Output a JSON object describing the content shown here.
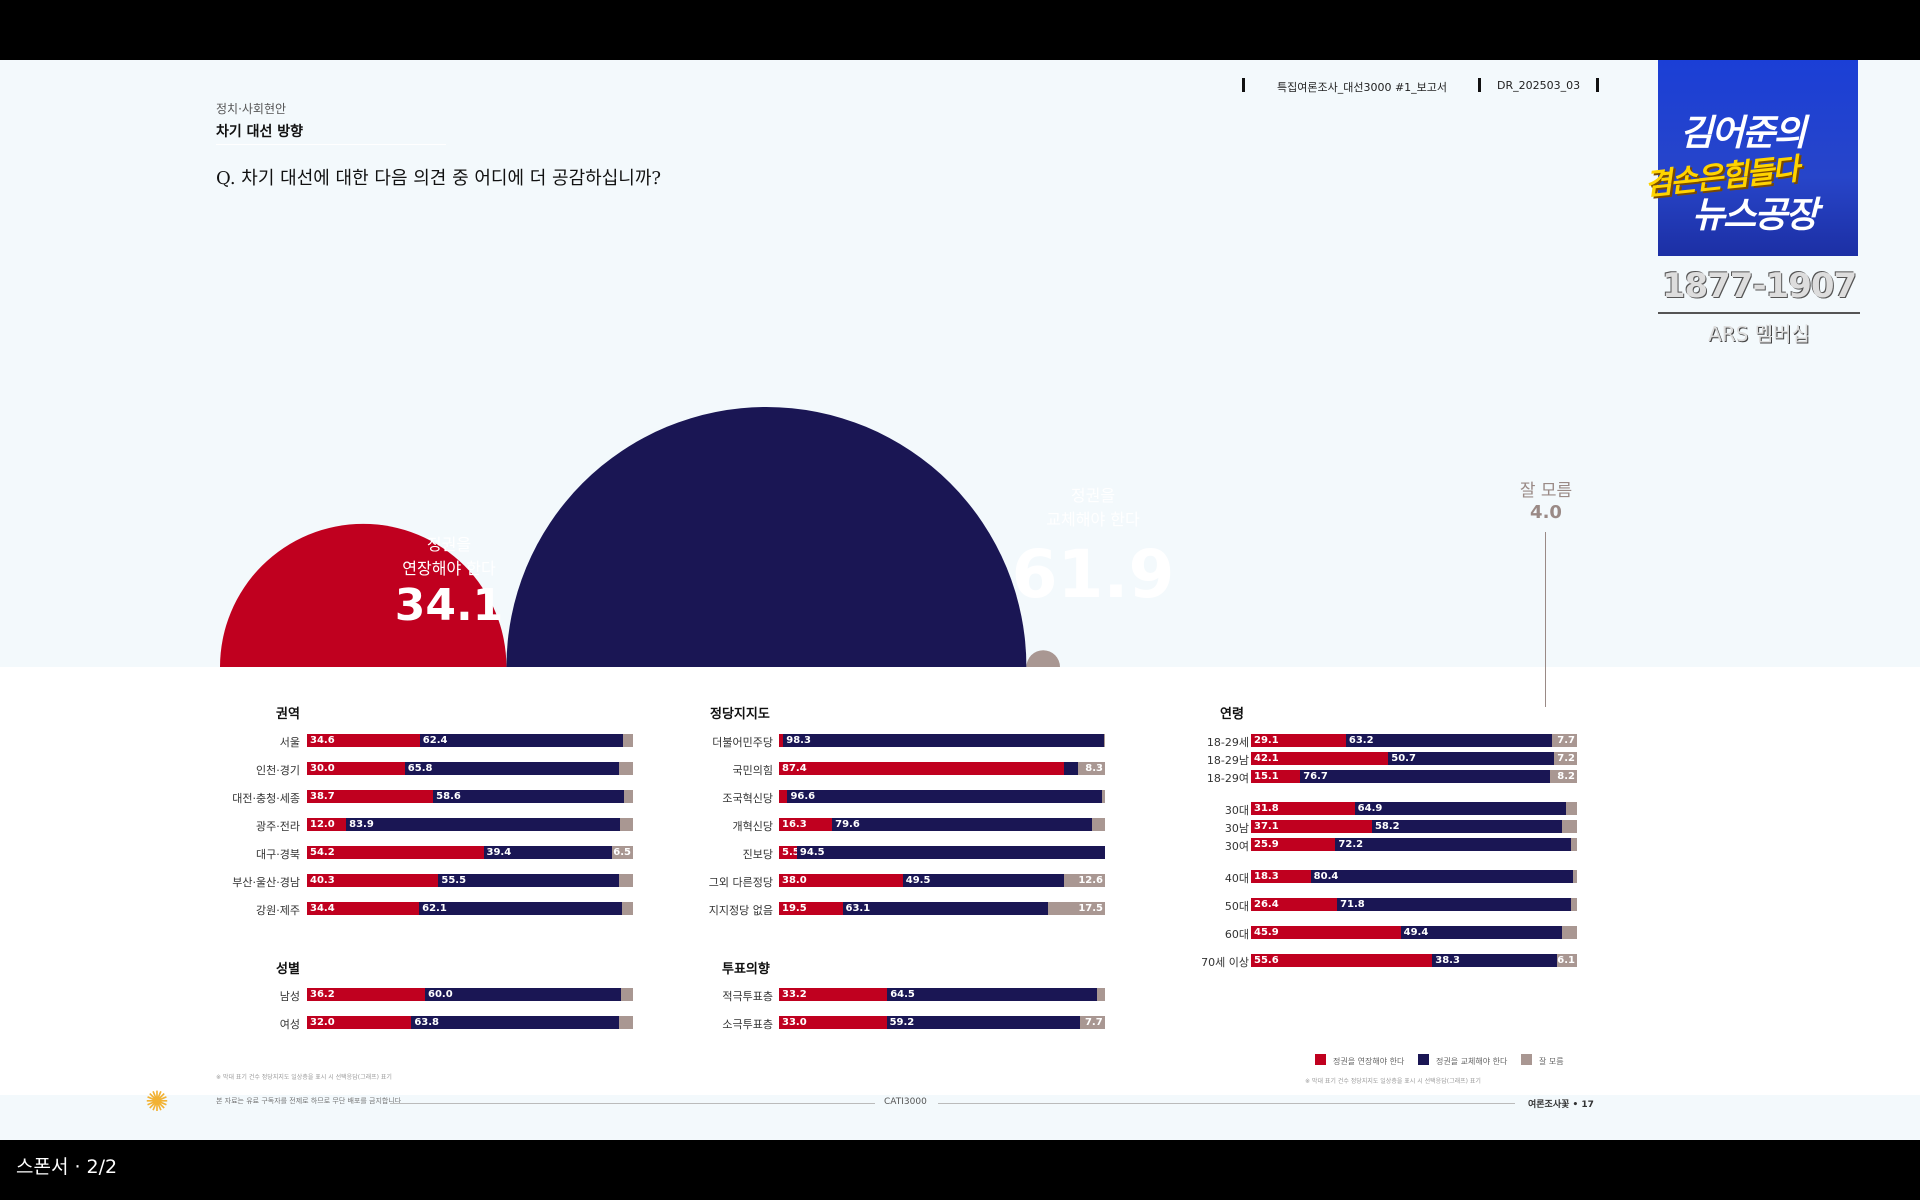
{
  "header": {
    "category": "정치·사회현안",
    "subject": "차기 대선 방향",
    "question": "Q. 차기 대선에 대한 다음 의견 중 어디에 더 공감하십니까?",
    "report": "특집여론조사_대선3000 #1_보고서",
    "code": "DR_202503_03"
  },
  "logo": {
    "line1": "김어준의",
    "line2": "겸손은힘들다",
    "line3": "뉴스공장",
    "years": "1877-1907",
    "sub": "ARS 멤버십"
  },
  "colors": {
    "extend": "#c0001f",
    "replace": "#1a1654",
    "unknown": "#a99792"
  },
  "overall": {
    "extend": {
      "label1": "정권을",
      "label2": "연장해야 한다",
      "value": "34.1"
    },
    "replace": {
      "label1": "정권을",
      "label2": "교체해야 한다",
      "value": "61.9"
    },
    "unknown": {
      "label": "잘 모름",
      "value": "4.0"
    }
  },
  "groups": {
    "region": {
      "title": "권역"
    },
    "party": {
      "title": "정당지지도"
    },
    "age": {
      "title": "연령"
    },
    "gender": {
      "title": "성별"
    },
    "vote": {
      "title": "투표의향"
    }
  },
  "legend": {
    "extend": "정권을 연장해야 한다",
    "replace": "정권을 교체해야 한다",
    "unknown": "잘 모름"
  },
  "footer": {
    "left": "본 자료는 유료 구독자를 전제로 하므로 무단 배포를 금지합니다",
    "center": "CATI3000",
    "right": "여론조사꽃 • 17"
  },
  "footnotes": {
    "left": "※ 막대 표기 건수 정당지지도 일상층을 표시 시 선택응답(그래프) 표기",
    "right": "※ 막대 표기 건수 정당지지도 일상층을 표시 시 선택응답(그래프) 표기"
  },
  "pager": "스폰서 · 2/2",
  "chart_data": [
    {
      "type": "pie",
      "title": "Q. 차기 대선에 대한 다음 의견 중 어디에 더 공감하십니까?",
      "categories": [
        "정권을 연장해야 한다",
        "정권을 교체해야 한다",
        "잘 모름"
      ],
      "values": [
        34.1,
        61.9,
        4.0
      ]
    },
    {
      "type": "bar",
      "title": "권역",
      "categories": [
        "서울",
        "인천·경기",
        "대전·충청·세종",
        "광주·전라",
        "대구·경북",
        "부산·울산·경남",
        "강원·제주"
      ],
      "series": [
        {
          "name": "정권을 연장해야 한다",
          "values": [
            34.6,
            30.0,
            38.7,
            12.0,
            54.2,
            40.3,
            34.4
          ]
        },
        {
          "name": "정권을 교체해야 한다",
          "values": [
            62.4,
            65.8,
            58.6,
            83.9,
            39.4,
            55.5,
            62.1
          ]
        },
        {
          "name": "잘 모름",
          "values": [
            3.0,
            4.2,
            2.7,
            4.1,
            6.5,
            4.2,
            3.5
          ]
        }
      ]
    },
    {
      "type": "bar",
      "title": "정당지지도",
      "categories": [
        "더불어민주당",
        "국민의힘",
        "조국혁신당",
        "개혁신당",
        "진보당",
        "그외 다른정당",
        "지지정당 없음"
      ],
      "series": [
        {
          "name": "정권을 연장해야 한다",
          "values": [
            1.3,
            87.4,
            2.6,
            16.3,
            5.5,
            38.0,
            19.5
          ]
        },
        {
          "name": "정권을 교체해야 한다",
          "values": [
            98.3,
            4.3,
            96.6,
            79.6,
            94.5,
            49.5,
            63.1
          ]
        },
        {
          "name": "잘 모름",
          "values": [
            0.4,
            8.3,
            0.8,
            4.1,
            0.0,
            12.6,
            17.5
          ]
        }
      ]
    },
    {
      "type": "bar",
      "title": "연령",
      "categories": [
        "18-29세",
        "18-29남",
        "18-29여",
        "30대",
        "30남",
        "30여",
        "40대",
        "50대",
        "60대",
        "70세 이상"
      ],
      "series": [
        {
          "name": "정권을 연장해야 한다",
          "values": [
            29.1,
            42.1,
            15.1,
            31.8,
            37.1,
            25.9,
            18.3,
            26.4,
            45.9,
            55.6
          ]
        },
        {
          "name": "정권을 교체해야 한다",
          "values": [
            63.2,
            50.7,
            76.7,
            64.9,
            58.2,
            72.2,
            80.4,
            71.8,
            49.4,
            38.3
          ]
        },
        {
          "name": "잘 모름",
          "values": [
            7.7,
            7.2,
            8.2,
            3.3,
            4.7,
            1.9,
            1.3,
            1.8,
            4.7,
            6.1
          ]
        }
      ]
    },
    {
      "type": "bar",
      "title": "성별",
      "categories": [
        "남성",
        "여성"
      ],
      "series": [
        {
          "name": "정권을 연장해야 한다",
          "values": [
            36.2,
            32.0
          ]
        },
        {
          "name": "정권을 교체해야 한다",
          "values": [
            60.0,
            63.8
          ]
        },
        {
          "name": "잘 모름",
          "values": [
            3.8,
            4.2
          ]
        }
      ]
    },
    {
      "type": "bar",
      "title": "투표의향",
      "categories": [
        "적극투표층",
        "소극투표층"
      ],
      "series": [
        {
          "name": "정권을 연장해야 한다",
          "values": [
            33.2,
            33.0
          ]
        },
        {
          "name": "정권을 교체해야 한다",
          "values": [
            64.5,
            59.2
          ]
        },
        {
          "name": "잘 모름",
          "values": [
            2.3,
            7.7
          ]
        }
      ]
    }
  ]
}
